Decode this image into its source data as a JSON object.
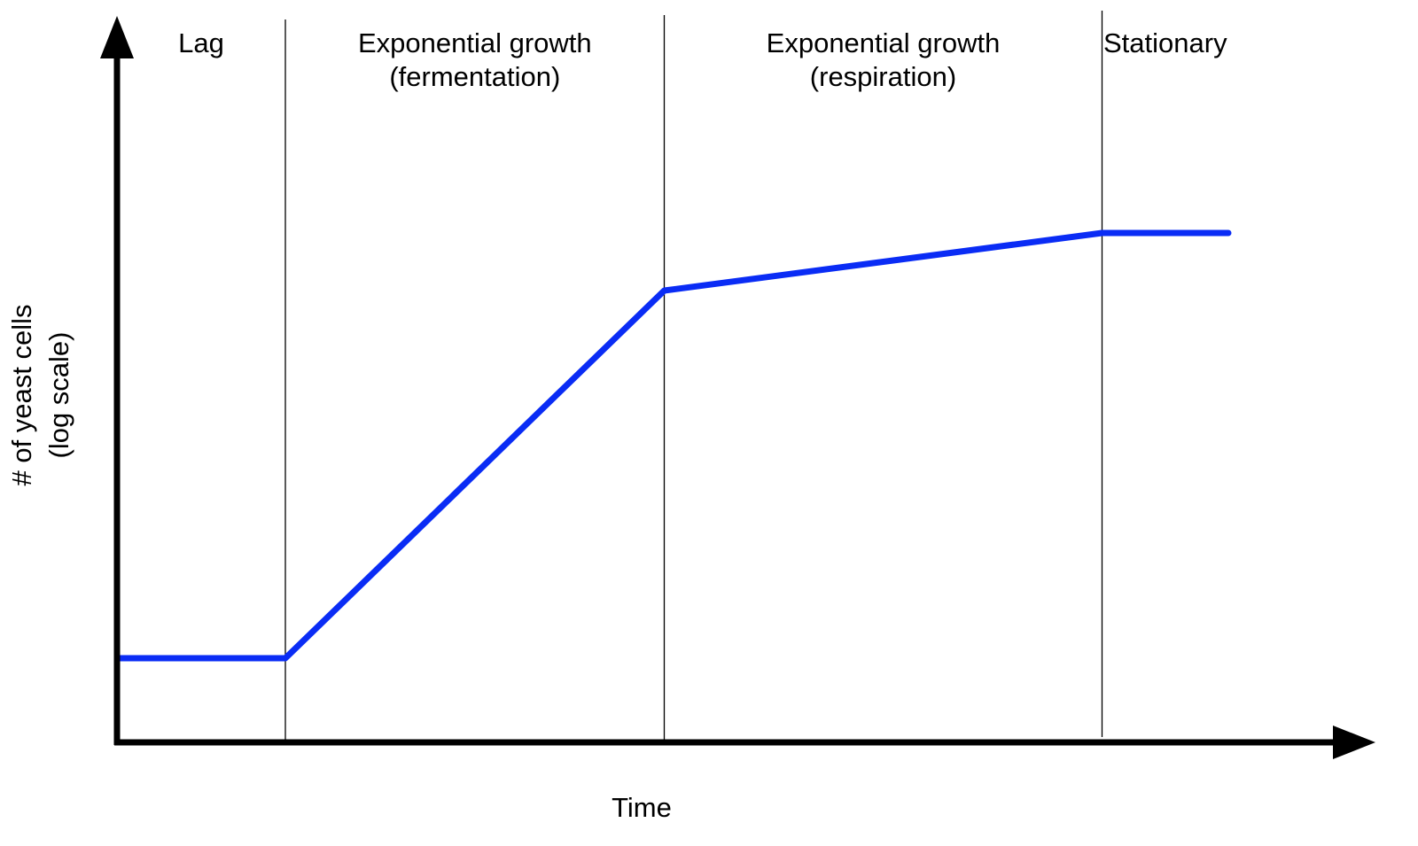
{
  "chart_data": {
    "type": "line",
    "title": "",
    "xlabel": "Time",
    "ylabel_lines": [
      "# of yeast cells",
      "(log scale)"
    ],
    "y_scale": "log",
    "x_ticks": [],
    "y_ticks": [],
    "grid": false,
    "legend": "none",
    "phases": [
      {
        "label_lines": [
          "Lag"
        ],
        "start": 0.0,
        "end": 1.0
      },
      {
        "label_lines": [
          "Exponential growth",
          "(fermentation)"
        ],
        "start": 1.0,
        "end": 3.25
      },
      {
        "label_lines": [
          "Exponential growth",
          "(respiration)"
        ],
        "start": 3.25,
        "end": 5.85
      },
      {
        "label_lines": [
          "Stationary"
        ],
        "start": 5.85,
        "end": 6.6
      }
    ],
    "phase_boundaries": [
      1.0,
      3.25,
      5.85
    ],
    "series": [
      {
        "x": [
          0.0,
          1.0,
          3.25,
          5.85,
          6.6
        ],
        "y": [
          0.95,
          0.95,
          5.1,
          5.75,
          5.75
        ]
      }
    ],
    "xlim": [
      0,
      7.6
    ],
    "ylim": [
      0,
      8
    ],
    "line_color": "#0a2cf5",
    "axis_color": "#000000"
  }
}
